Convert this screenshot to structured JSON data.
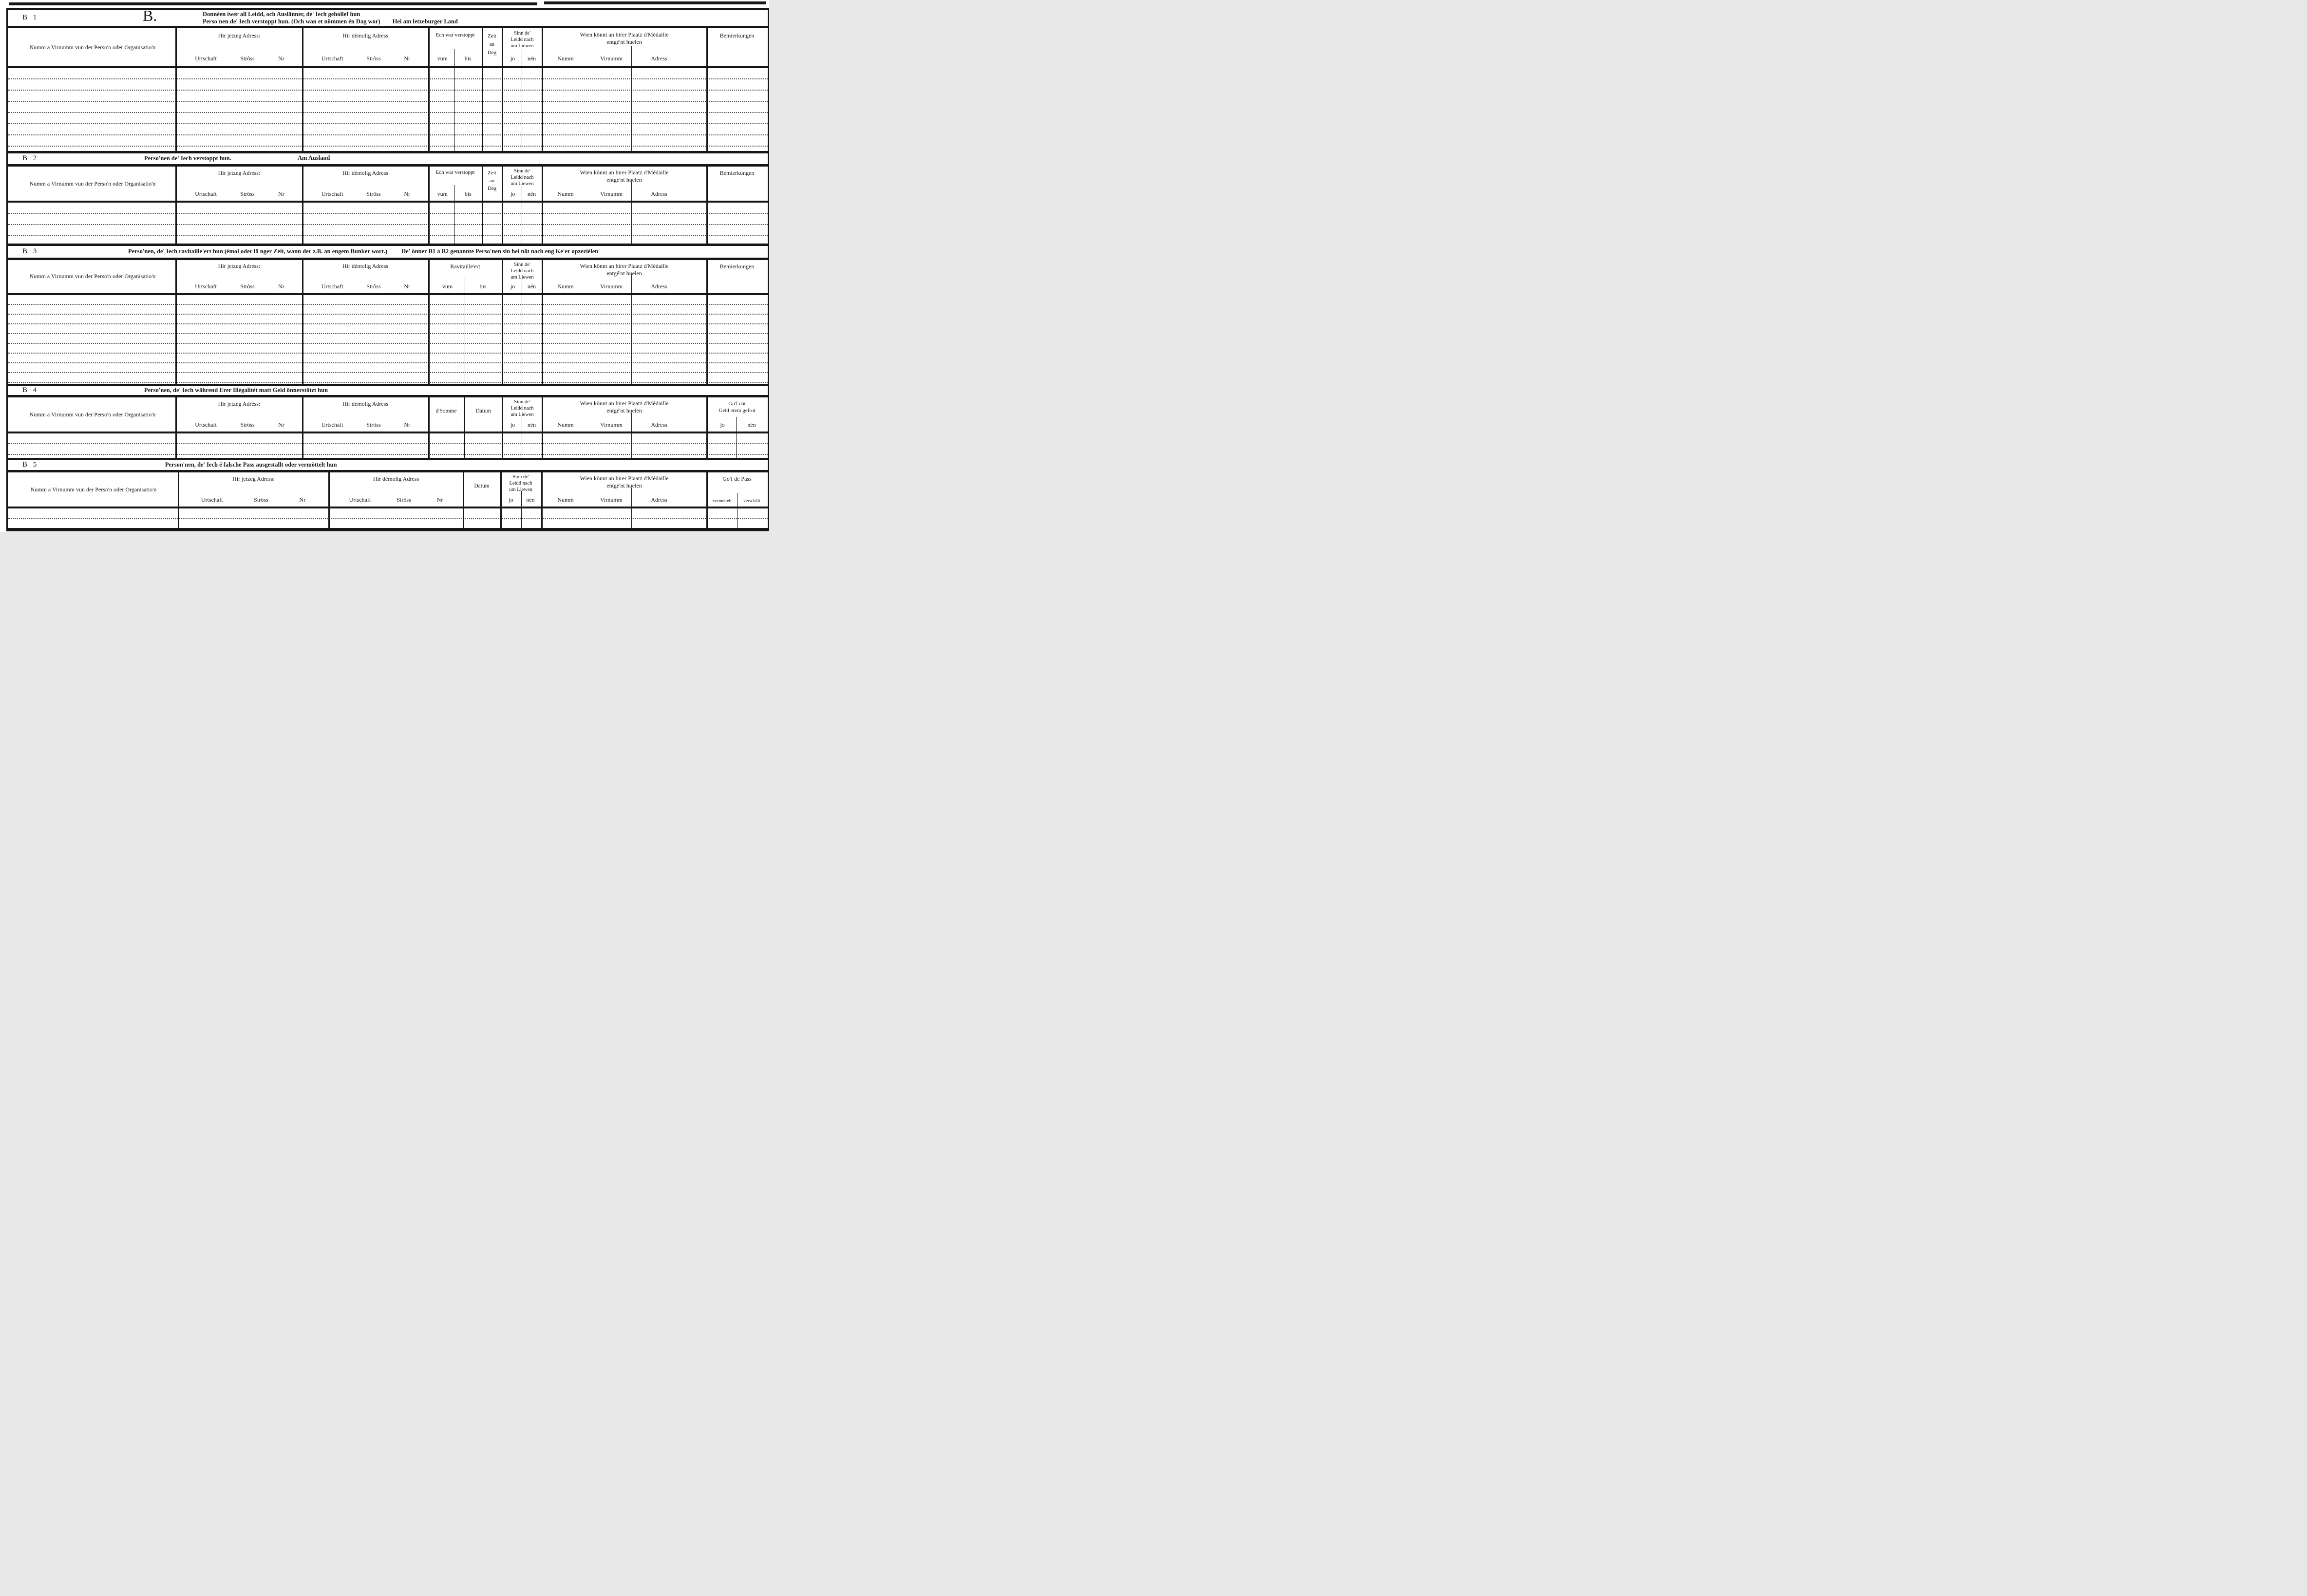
{
  "ink_color": "#161616",
  "paper_color": "#ffffff",
  "columns": {
    "name": "Numm a Virnumm vun der Perso'n oder Organisatio'n",
    "current_address": "Hir jetzeg Adress:",
    "former_address": "Hir démolig Adress",
    "urtschaft": "Urtschaft",
    "stross": "Strôss",
    "nr": "Nr",
    "hidden": "Ech war verstoppt",
    "vum": "vum",
    "bis": "bis",
    "zeit_l1": "Zeit",
    "zeit_l2": "an",
    "zeit_l3": "Dég",
    "alive_l1": "Sinn de'",
    "alive_l2": "Leidd nach",
    "alive_l3": "um Liewen",
    "jo": "jo",
    "nen": "nén",
    "medal_l1": "Wien könnt an hirer Plaatz d'Médaille",
    "medal_l2": "entgé'nt huelen",
    "numm": "Numm",
    "virnumm": "Virnumm",
    "adress": "Adress",
    "remarks": "Bemierkungen",
    "ravitailleert": "Ravitaille'ert",
    "dsomme": "d'Somme",
    "datum": "Datum",
    "money_l1": "Go'f dât",
    "money_l2": "Geld erem gefrot",
    "pass": "Go'f de Pass",
    "vermettelt": "vermettelt",
    "verschaft": "verschâft"
  },
  "sections": {
    "b1": {
      "label": "B 1",
      "big_letter": "B.",
      "title_line1": "Donnéen iwer all Leidd, och Auslänner, de' Iech gehollef hun",
      "title_line2": "Perso'nen de' Iech verstoppt hun. (Och wan et nömmen én Dag wor)",
      "title_bold": "Hei am letzeburger Land",
      "rows": 8
    },
    "b2": {
      "label": "B 2",
      "title": "Perso'nen de' Iech verstoppt hun.",
      "subtitle": "Am Ausland",
      "rows": 4
    },
    "b3": {
      "label": "B 3",
      "title_part1": "Perso'nen, de' Iech ravitaille'ert hun (émol oder lä nger Zeit, wann der z.B. an engem Bunker wort.)",
      "title_part2": "De' önner B1 a B2 genannte Perso'nen sin hei nöt nach eng Ke'er opzeziélen",
      "rows": 10
    },
    "b4": {
      "label": "B 4",
      "title": "Perso'nen, de' Iech während Erer Illégalitét matt Geld önnerstötzt hun",
      "rows": 2
    },
    "b5": {
      "label": "B 5",
      "title": "Person'nen, de' Iech é falsche Pass ausgestallt oder vermöttelt hun",
      "rows": 2
    }
  }
}
